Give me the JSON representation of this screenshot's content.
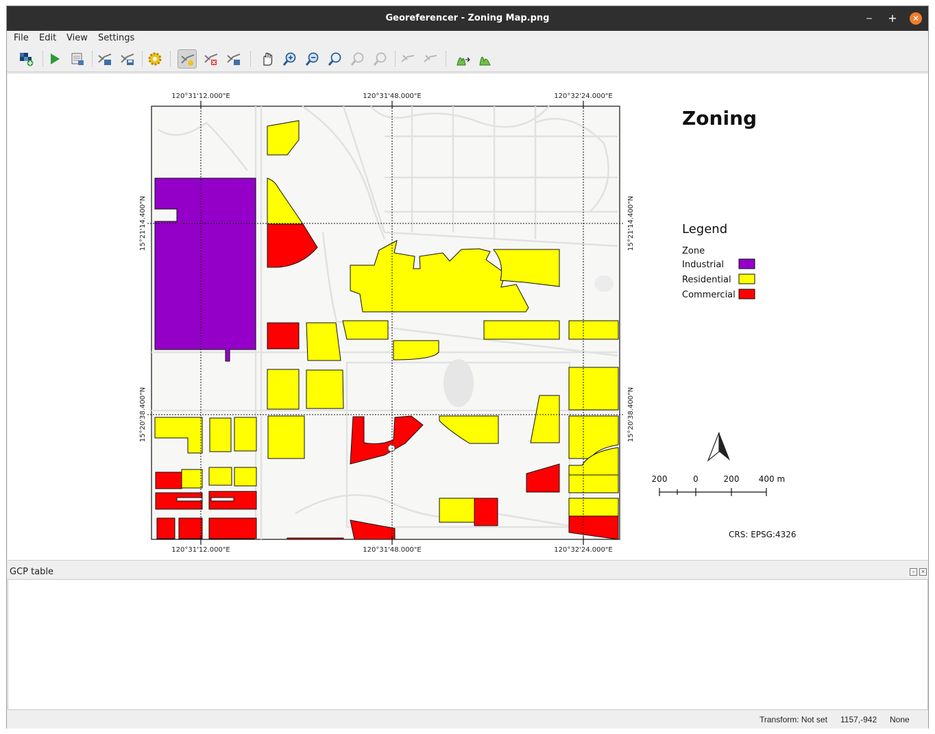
{
  "window": {
    "title": "Georeferencer - Zoning Map.png"
  },
  "menu": {
    "file": "File",
    "edit": "Edit",
    "view": "View",
    "settings": "Settings"
  },
  "toolbar": {
    "icons": [
      "open-raster-icon",
      "start-georeferencing-icon",
      "generate-gdal-script-icon",
      "load-gcp-points-icon",
      "save-gcp-points-icon",
      "transformation-settings-icon",
      "add-point-icon",
      "delete-point-icon",
      "move-gcp-point-icon",
      "pan-icon",
      "zoom-in-icon",
      "zoom-out-icon",
      "zoom-to-layer-icon",
      "zoom-last-icon",
      "zoom-next-icon",
      "link-georeferencer-to-qgis-icon",
      "link-qgis-to-georeferencer-icon",
      "full-histogram-stretch-icon",
      "local-histogram-stretch-icon"
    ]
  },
  "map": {
    "title": "Zoning",
    "legend_title": "Legend",
    "legend_group": "Zone",
    "legend_items": [
      {
        "label": "Industrial",
        "color": "#9400c8"
      },
      {
        "label": "Residential",
        "color": "#ffff00"
      },
      {
        "label": "Commercial",
        "color": "#ff0000"
      }
    ],
    "grid_top": [
      "120°31'12.000\"E",
      "120°31'48.000\"E",
      "120°32'24.000\"E"
    ],
    "grid_bottom": [
      "120°31'12.000\"E",
      "120°31'48.000\"E",
      "120°32'24.000\"E"
    ],
    "grid_left": [
      "15°21'14.400\"N",
      "15°20'38.400\"N"
    ],
    "grid_right": [
      "15°21'14.400\"N",
      "15°20'38.400\"N"
    ],
    "scale_labels": [
      "200",
      "0",
      "200",
      "400 m"
    ],
    "crs": "CRS: EPSG:4326"
  },
  "gcp_panel": {
    "title": "GCP table"
  },
  "status": {
    "transform": "Transform: Not set",
    "coords": "1157,-942",
    "crs": "None"
  }
}
